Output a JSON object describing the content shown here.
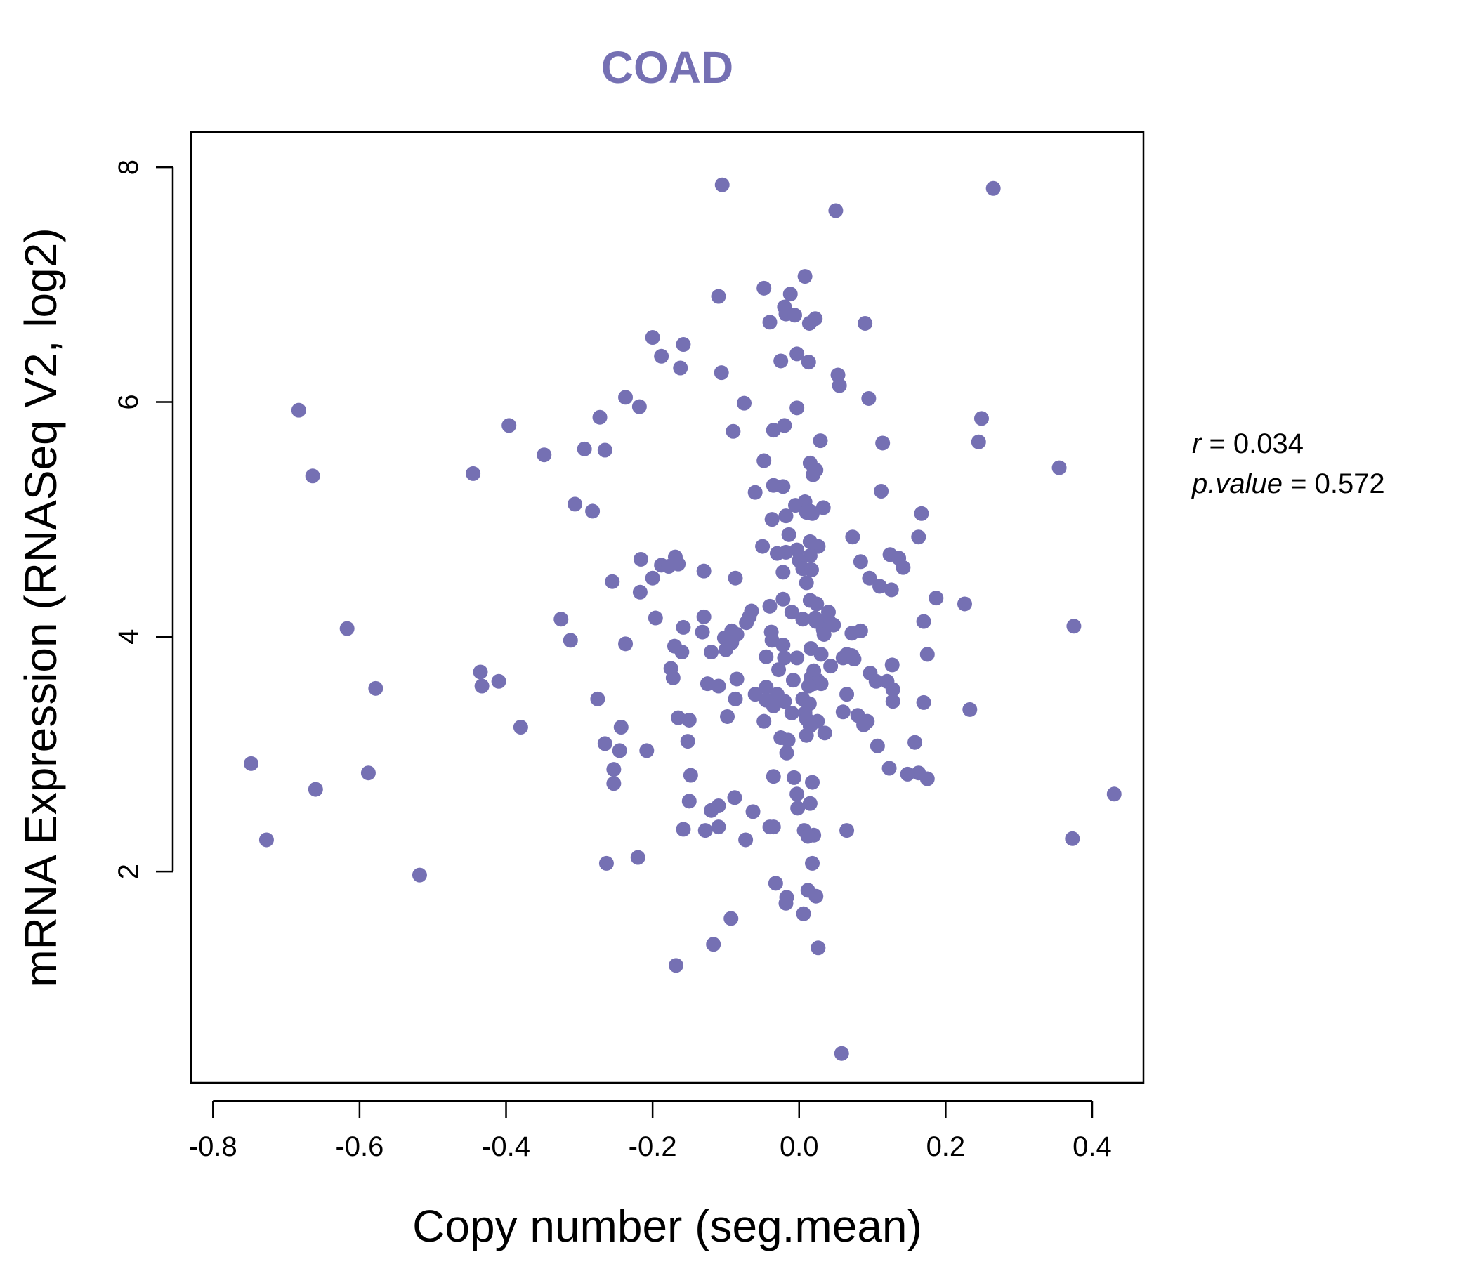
{
  "colors": {
    "point": "#7570b3",
    "title": "#7570b3",
    "axis": "#000000"
  },
  "chart_data": {
    "type": "scatter",
    "title": "COAD",
    "xlabel": "Copy number (seg.mean)",
    "ylabel": "mRNA Expression (RNASeq V2, log2)",
    "xlim": [
      -0.83,
      0.47
    ],
    "ylim": [
      0.2,
      8.3
    ],
    "xticks": [
      -0.8,
      -0.6,
      -0.4,
      -0.2,
      0.0,
      0.2,
      0.4
    ],
    "xtick_labels": [
      "-0.8",
      "-0.6",
      "-0.4",
      "-0.2",
      "0.0",
      "0.2",
      "0.4"
    ],
    "yticks": [
      2,
      4,
      6,
      8
    ],
    "ytick_labels": [
      "2",
      "4",
      "6",
      "8"
    ],
    "grid": false,
    "stats": {
      "r_label": "r",
      "r_value": "0.034",
      "p_label": "p.value",
      "p_value": "0.572"
    },
    "points": [
      [
        -0.105,
        7.85
      ],
      [
        0.265,
        7.82
      ],
      [
        0.05,
        7.63
      ],
      [
        0.008,
        7.07
      ],
      [
        -0.048,
        6.97
      ],
      [
        -0.012,
        6.92
      ],
      [
        -0.11,
        6.9
      ],
      [
        -0.02,
        6.81
      ],
      [
        -0.018,
        6.75
      ],
      [
        -0.006,
        6.74
      ],
      [
        0.022,
        6.71
      ],
      [
        -0.04,
        6.68
      ],
      [
        0.014,
        6.67
      ],
      [
        0.09,
        6.67
      ],
      [
        -0.2,
        6.55
      ],
      [
        -0.158,
        6.49
      ],
      [
        -0.188,
        6.39
      ],
      [
        -0.003,
        6.41
      ],
      [
        -0.025,
        6.35
      ],
      [
        0.013,
        6.34
      ],
      [
        -0.162,
        6.29
      ],
      [
        -0.106,
        6.25
      ],
      [
        0.053,
        6.23
      ],
      [
        0.055,
        6.14
      ],
      [
        -0.237,
        6.04
      ],
      [
        0.095,
        6.03
      ],
      [
        -0.075,
        5.99
      ],
      [
        -0.218,
        5.96
      ],
      [
        -0.003,
        5.95
      ],
      [
        -0.683,
        5.93
      ],
      [
        -0.272,
        5.87
      ],
      [
        0.249,
        5.86
      ],
      [
        -0.396,
        5.8
      ],
      [
        -0.02,
        5.8
      ],
      [
        -0.035,
        5.76
      ],
      [
        -0.09,
        5.75
      ],
      [
        0.029,
        5.67
      ],
      [
        0.114,
        5.65
      ],
      [
        0.245,
        5.66
      ],
      [
        -0.293,
        5.6
      ],
      [
        -0.265,
        5.59
      ],
      [
        -0.348,
        5.55
      ],
      [
        -0.048,
        5.5
      ],
      [
        0.015,
        5.48
      ],
      [
        0.355,
        5.44
      ],
      [
        0.023,
        5.42
      ],
      [
        0.019,
        5.38
      ],
      [
        -0.445,
        5.39
      ],
      [
        -0.664,
        5.37
      ],
      [
        -0.035,
        5.29
      ],
      [
        -0.022,
        5.28
      ],
      [
        0.112,
        5.24
      ],
      [
        -0.06,
        5.23
      ],
      [
        0.008,
        5.15
      ],
      [
        -0.005,
        5.12
      ],
      [
        -0.306,
        5.13
      ],
      [
        0.033,
        5.1
      ],
      [
        0.015,
        5.07
      ],
      [
        0.018,
        5.05
      ],
      [
        0.01,
        5.06
      ],
      [
        -0.282,
        5.07
      ],
      [
        0.167,
        5.05
      ],
      [
        -0.018,
        5.03
      ],
      [
        -0.037,
        5.0
      ],
      [
        -0.014,
        4.87
      ],
      [
        0.073,
        4.85
      ],
      [
        0.163,
        4.85
      ],
      [
        0.015,
        4.81
      ],
      [
        0.026,
        4.77
      ],
      [
        -0.05,
        4.77
      ],
      [
        -0.003,
        4.74
      ],
      [
        -0.018,
        4.72
      ],
      [
        -0.03,
        4.71
      ],
      [
        0.015,
        4.69
      ],
      [
        0.124,
        4.7
      ],
      [
        0.136,
        4.67
      ],
      [
        -0.169,
        4.68
      ],
      [
        0.0,
        4.65
      ],
      [
        -0.216,
        4.66
      ],
      [
        0.084,
        4.64
      ],
      [
        -0.165,
        4.62
      ],
      [
        -0.188,
        4.61
      ],
      [
        -0.178,
        4.6
      ],
      [
        0.142,
        4.59
      ],
      [
        0.005,
        4.58
      ],
      [
        0.017,
        4.57
      ],
      [
        -0.022,
        4.55
      ],
      [
        -0.13,
        4.56
      ],
      [
        0.096,
        4.5
      ],
      [
        -0.2,
        4.5
      ],
      [
        -0.087,
        4.5
      ],
      [
        -0.255,
        4.47
      ],
      [
        0.01,
        4.46
      ],
      [
        0.11,
        4.43
      ],
      [
        0.126,
        4.4
      ],
      [
        -0.217,
        4.38
      ],
      [
        0.187,
        4.33
      ],
      [
        -0.022,
        4.32
      ],
      [
        0.015,
        4.31
      ],
      [
        0.024,
        4.28
      ],
      [
        0.226,
        4.28
      ],
      [
        -0.04,
        4.26
      ],
      [
        -0.065,
        4.22
      ],
      [
        0.04,
        4.21
      ],
      [
        -0.01,
        4.21
      ],
      [
        -0.068,
        4.17
      ],
      [
        -0.13,
        4.17
      ],
      [
        0.022,
        4.16
      ],
      [
        0.005,
        4.15
      ],
      [
        -0.196,
        4.16
      ],
      [
        -0.325,
        4.15
      ],
      [
        0.04,
        4.14
      ],
      [
        0.023,
        4.13
      ],
      [
        0.17,
        4.13
      ],
      [
        -0.072,
        4.12
      ],
      [
        0.047,
        4.1
      ],
      [
        0.375,
        4.09
      ],
      [
        -0.158,
        4.08
      ],
      [
        -0.617,
        4.07
      ],
      [
        0.033,
        4.06
      ],
      [
        0.084,
        4.05
      ],
      [
        -0.092,
        4.05
      ],
      [
        -0.132,
        4.04
      ],
      [
        -0.038,
        4.04
      ],
      [
        0.072,
        4.03
      ],
      [
        -0.085,
        4.02
      ],
      [
        0.034,
        4.02
      ],
      [
        -0.102,
        3.99
      ],
      [
        -0.037,
        3.97
      ],
      [
        -0.312,
        3.97
      ],
      [
        -0.092,
        3.95
      ],
      [
        -0.237,
        3.94
      ],
      [
        -0.022,
        3.93
      ],
      [
        -0.17,
        3.92
      ],
      [
        0.016,
        3.9
      ],
      [
        -0.1,
        3.89
      ],
      [
        -0.16,
        3.87
      ],
      [
        0.175,
        3.85
      ],
      [
        -0.12,
        3.87
      ],
      [
        0.03,
        3.85
      ],
      [
        0.065,
        3.85
      ],
      [
        0.072,
        3.84
      ],
      [
        -0.003,
        3.82
      ],
      [
        -0.02,
        3.82
      ],
      [
        -0.045,
        3.83
      ],
      [
        0.06,
        3.82
      ],
      [
        0.075,
        3.81
      ],
      [
        0.127,
        3.76
      ],
      [
        0.043,
        3.75
      ],
      [
        -0.175,
        3.73
      ],
      [
        -0.028,
        3.72
      ],
      [
        0.02,
        3.71
      ],
      [
        -0.435,
        3.7
      ],
      [
        0.097,
        3.69
      ],
      [
        -0.172,
        3.65
      ],
      [
        -0.085,
        3.64
      ],
      [
        0.016,
        3.65
      ],
      [
        0.025,
        3.63
      ],
      [
        -0.008,
        3.63
      ],
      [
        0.105,
        3.62
      ],
      [
        0.12,
        3.62
      ],
      [
        -0.41,
        3.62
      ],
      [
        -0.125,
        3.6
      ],
      [
        0.03,
        3.6
      ],
      [
        0.02,
        3.6
      ],
      [
        0.013,
        3.58
      ],
      [
        -0.11,
        3.58
      ],
      [
        -0.433,
        3.58
      ],
      [
        -0.045,
        3.57
      ],
      [
        0.128,
        3.55
      ],
      [
        -0.578,
        3.56
      ],
      [
        0.065,
        3.51
      ],
      [
        -0.03,
        3.51
      ],
      [
        -0.06,
        3.51
      ],
      [
        -0.087,
        3.47
      ],
      [
        0.005,
        3.47
      ],
      [
        -0.275,
        3.47
      ],
      [
        -0.045,
        3.46
      ],
      [
        -0.02,
        3.45
      ],
      [
        0.128,
        3.45
      ],
      [
        0.17,
        3.44
      ],
      [
        0.014,
        3.43
      ],
      [
        -0.035,
        3.41
      ],
      [
        0.233,
        3.38
      ],
      [
        0.06,
        3.36
      ],
      [
        -0.01,
        3.35
      ],
      [
        0.008,
        3.35
      ],
      [
        0.08,
        3.33
      ],
      [
        -0.098,
        3.32
      ],
      [
        -0.165,
        3.31
      ],
      [
        0.01,
        3.3
      ],
      [
        0.025,
        3.28
      ],
      [
        0.093,
        3.28
      ],
      [
        -0.048,
        3.28
      ],
      [
        -0.15,
        3.29
      ],
      [
        0.088,
        3.25
      ],
      [
        0.015,
        3.24
      ],
      [
        -0.38,
        3.23
      ],
      [
        -0.243,
        3.23
      ],
      [
        0.035,
        3.18
      ],
      [
        0.01,
        3.16
      ],
      [
        -0.025,
        3.14
      ],
      [
        -0.015,
        3.12
      ],
      [
        -0.152,
        3.11
      ],
      [
        0.158,
        3.1
      ],
      [
        -0.265,
        3.09
      ],
      [
        0.107,
        3.07
      ],
      [
        -0.208,
        3.03
      ],
      [
        -0.245,
        3.03
      ],
      [
        -0.017,
        3.01
      ],
      [
        -0.748,
        2.92
      ],
      [
        0.123,
        2.88
      ],
      [
        -0.253,
        2.87
      ],
      [
        0.163,
        2.84
      ],
      [
        -0.588,
        2.84
      ],
      [
        0.148,
        2.83
      ],
      [
        -0.148,
        2.82
      ],
      [
        -0.035,
        2.81
      ],
      [
        -0.007,
        2.8
      ],
      [
        0.175,
        2.79
      ],
      [
        0.018,
        2.76
      ],
      [
        -0.253,
        2.75
      ],
      [
        -0.66,
        2.7
      ],
      [
        0.43,
        2.66
      ],
      [
        -0.003,
        2.66
      ],
      [
        -0.088,
        2.63
      ],
      [
        -0.15,
        2.6
      ],
      [
        0.015,
        2.58
      ],
      [
        -0.11,
        2.56
      ],
      [
        -0.12,
        2.52
      ],
      [
        -0.063,
        2.51
      ],
      [
        -0.002,
        2.54
      ],
      [
        -0.04,
        2.38
      ],
      [
        -0.11,
        2.38
      ],
      [
        -0.035,
        2.38
      ],
      [
        -0.158,
        2.36
      ],
      [
        0.007,
        2.35
      ],
      [
        0.065,
        2.35
      ],
      [
        -0.128,
        2.35
      ],
      [
        0.02,
        2.31
      ],
      [
        0.012,
        2.3
      ],
      [
        0.373,
        2.28
      ],
      [
        -0.073,
        2.27
      ],
      [
        -0.727,
        2.27
      ],
      [
        -0.22,
        2.12
      ],
      [
        -0.263,
        2.07
      ],
      [
        0.018,
        2.07
      ],
      [
        -0.518,
        1.97
      ],
      [
        -0.032,
        1.9
      ],
      [
        0.012,
        1.84
      ],
      [
        0.023,
        1.79
      ],
      [
        -0.017,
        1.78
      ],
      [
        -0.018,
        1.73
      ],
      [
        0.006,
        1.64
      ],
      [
        -0.093,
        1.6
      ],
      [
        -0.117,
        1.38
      ],
      [
        0.026,
        1.35
      ],
      [
        -0.168,
        1.2
      ],
      [
        0.058,
        0.45
      ]
    ]
  }
}
